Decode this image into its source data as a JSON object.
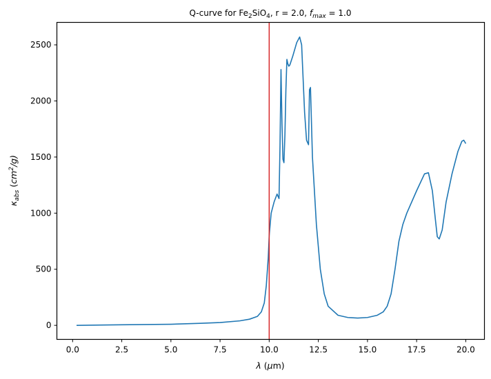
{
  "chart_data": {
    "type": "line",
    "title": {
      "prefix": "Q-curve for Fe",
      "sub1": "2",
      "mid": "SiO",
      "sub2": "4",
      "after": ", r = 2.0, ",
      "f": "f",
      "fsub": "max",
      "value": " = 1.0"
    },
    "xlabel": {
      "sym": "λ",
      "unit_open": " (",
      "mu": "μ",
      "unit_close": "m)"
    },
    "ylabel": {
      "kappa": "κ",
      "kappa_sub": "abs",
      "open": " (",
      "cm": "cm",
      "sup": "2",
      "rest": "/g)"
    },
    "xlim": [
      -0.8,
      20.95
    ],
    "ylim": [
      -125,
      2700
    ],
    "xticks": [
      0,
      2.5,
      5,
      7.5,
      10,
      12.5,
      15,
      17.5,
      20
    ],
    "xtick_labels": [
      "0.0",
      "2.5",
      "5.0",
      "7.5",
      "10.0",
      "12.5",
      "15.0",
      "17.5",
      "20.0"
    ],
    "yticks": [
      0,
      500,
      1000,
      1500,
      2000,
      2500
    ],
    "ytick_labels": [
      "0",
      "500",
      "1000",
      "1500",
      "2000",
      "2500"
    ],
    "vline": {
      "x": 10.0,
      "color": "#d62728"
    },
    "grid": false,
    "series": [
      {
        "color": "#1f77b4",
        "x": [
          0.2,
          2.5,
          5.0,
          6.5,
          7.5,
          8.5,
          9.0,
          9.4,
          9.6,
          9.75,
          9.85,
          9.95,
          10.0,
          10.1,
          10.25,
          10.4,
          10.45,
          10.5,
          10.55,
          10.6,
          10.65,
          10.7,
          10.75,
          10.8,
          10.85,
          10.9,
          10.95,
          11.0,
          11.05,
          11.2,
          11.4,
          11.55,
          11.65,
          11.7,
          11.8,
          11.9,
          12.0,
          12.05,
          12.1,
          12.2,
          12.4,
          12.6,
          12.8,
          13.0,
          13.5,
          14.0,
          14.5,
          15.0,
          15.5,
          15.8,
          16.0,
          16.2,
          16.4,
          16.6,
          16.8,
          17.0,
          17.5,
          17.9,
          18.1,
          18.3,
          18.45,
          18.55,
          18.65,
          18.8,
          19.0,
          19.3,
          19.6,
          19.8,
          19.9,
          20.0
        ],
        "y": [
          0,
          5,
          10,
          18,
          25,
          40,
          55,
          80,
          120,
          200,
          350,
          600,
          800,
          1000,
          1100,
          1170,
          1150,
          1130,
          1600,
          2280,
          1800,
          1480,
          1450,
          1700,
          2100,
          2370,
          2330,
          2310,
          2320,
          2400,
          2520,
          2570,
          2500,
          2300,
          1900,
          1650,
          1610,
          2100,
          2120,
          1500,
          900,
          500,
          280,
          170,
          90,
          70,
          65,
          70,
          90,
          120,
          170,
          280,
          500,
          750,
          900,
          1000,
          1200,
          1350,
          1360,
          1200,
          950,
          790,
          770,
          850,
          1100,
          1350,
          1550,
          1640,
          1650,
          1620
        ]
      }
    ]
  }
}
